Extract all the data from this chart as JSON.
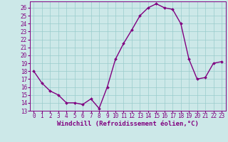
{
  "x": [
    0,
    1,
    2,
    3,
    4,
    5,
    6,
    7,
    8,
    9,
    10,
    11,
    12,
    13,
    14,
    15,
    16,
    17,
    18,
    19,
    20,
    21,
    22,
    23
  ],
  "y": [
    18,
    16.5,
    15.5,
    15,
    14,
    14,
    13.8,
    14.5,
    13.3,
    16,
    19.5,
    21.5,
    23.2,
    25,
    26,
    26.5,
    26,
    25.8,
    24,
    19.5,
    17,
    17.2,
    19,
    19.2
  ],
  "line_color": "#800080",
  "marker_color": "#800080",
  "bg_color": "#cce8e8",
  "grid_color": "#99cccc",
  "xlabel": "Windchill (Refroidissement éolien,°C)",
  "xlim": [
    -0.5,
    23.5
  ],
  "ylim": [
    13,
    26.8
  ],
  "yticks": [
    13,
    14,
    15,
    16,
    17,
    18,
    19,
    20,
    21,
    22,
    23,
    24,
    25,
    26
  ],
  "xticks": [
    0,
    1,
    2,
    3,
    4,
    5,
    6,
    7,
    8,
    9,
    10,
    11,
    12,
    13,
    14,
    15,
    16,
    17,
    18,
    19,
    20,
    21,
    22,
    23
  ],
  "tick_label_fontsize": 5.5,
  "xlabel_fontsize": 6.5,
  "marker_size": 2.0,
  "line_width": 1.0
}
